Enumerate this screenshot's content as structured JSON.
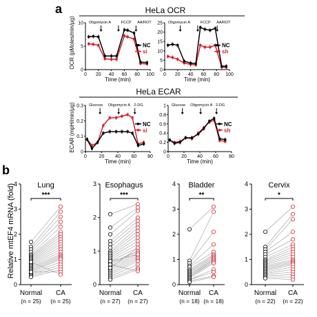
{
  "panel_a": {
    "label": "a",
    "ocr_title": "HeLa OCR",
    "ecar_title": "HeLa ECAR",
    "ocr_ylabel": "OCR (pMoles/min/μg)",
    "ecar_ylabel": "ECAR (mpH/min/μg)",
    "xlabel": "Time (min)"
  },
  "panel_b": {
    "label": "b",
    "ylabel": "Relative mtEF4 mRNA (fold)",
    "normal_label": "Normal",
    "ca_label": "CA"
  },
  "chart_data": [
    {
      "type": "line",
      "id": "ocr_si",
      "x": [
        5,
        12,
        20,
        30,
        40,
        48,
        60,
        65,
        75,
        85,
        95
      ],
      "series": [
        {
          "name": "NC",
          "color": "#000000",
          "values": [
            7.0,
            7.1,
            7.0,
            2.9,
            2.9,
            2.9,
            8.5,
            8.4,
            7.8,
            1.6,
            1.5
          ]
        },
        {
          "name": "si",
          "color": "#d4202c",
          "values": [
            5.5,
            5.4,
            5.2,
            2.3,
            2.2,
            2.2,
            7.2,
            7.0,
            6.5,
            1.3,
            1.2
          ]
        }
      ],
      "xlim": [
        0,
        100
      ],
      "ylim": [
        0,
        10
      ],
      "xticks": [
        0,
        20,
        40,
        60,
        80,
        100
      ],
      "yticks": [
        0,
        5,
        10
      ],
      "injections": [
        "Oligomycin A",
        "FCCP",
        "AA/ROT"
      ]
    },
    {
      "type": "line",
      "id": "ocr_sh",
      "x": [
        5,
        12,
        20,
        30,
        40,
        48,
        55,
        62,
        70,
        78,
        88,
        95
      ],
      "series": [
        {
          "name": "NC",
          "color": "#000000",
          "values": [
            13,
            13.5,
            13,
            4.5,
            3.5,
            3.2,
            22.5,
            21.5,
            21,
            22,
            1.8,
            1.8
          ]
        },
        {
          "name": "sh",
          "color": "#d4202c",
          "values": [
            7,
            6.5,
            5.5,
            3.5,
            2.8,
            2.5,
            13,
            12,
            12,
            13,
            1.3,
            1.2
          ]
        }
      ],
      "xlim": [
        0,
        100
      ],
      "ylim": [
        0,
        25
      ],
      "xticks": [
        0,
        20,
        40,
        60,
        80,
        100
      ],
      "yticks": [
        0,
        5,
        10,
        15,
        20,
        25
      ],
      "injections": [
        "Oligomycin A",
        "FCCP",
        "AA/ROT"
      ]
    },
    {
      "type": "line",
      "id": "ecar_si",
      "x": [
        2,
        8,
        15,
        22,
        30,
        38,
        45,
        52,
        58,
        65,
        72
      ],
      "series": [
        {
          "name": "NC",
          "color": "#000000",
          "values": [
            0.08,
            0.02,
            0.06,
            0.12,
            0.13,
            0.13,
            0.13,
            0.13,
            0.12,
            0.04,
            0.05
          ]
        },
        {
          "name": "si",
          "color": "#d4202c",
          "values": [
            0.08,
            0.04,
            0.06,
            0.17,
            0.22,
            0.22,
            0.23,
            0.24,
            0.22,
            0.05,
            0.06
          ]
        }
      ],
      "xlim": [
        0,
        80
      ],
      "ylim": [
        0,
        0.3
      ],
      "xticks": [
        0,
        20,
        40,
        60,
        80
      ],
      "yticks": [
        0.0,
        0.1,
        0.2,
        0.3
      ],
      "injections": [
        "Glucose",
        "Oligomycin A",
        "2-DG"
      ]
    },
    {
      "type": "line",
      "id": "ecar_sh",
      "x": [
        2,
        8,
        15,
        22,
        30,
        38,
        45,
        52,
        58,
        65,
        72
      ],
      "series": [
        {
          "name": "NC",
          "color": "#000000",
          "values": [
            0.25,
            0.18,
            0.2,
            0.3,
            0.3,
            0.38,
            0.5,
            0.66,
            0.72,
            0.28,
            0.26
          ]
        },
        {
          "name": "sh",
          "color": "#d4202c",
          "values": [
            0.25,
            0.2,
            0.22,
            0.3,
            0.28,
            0.4,
            0.52,
            0.64,
            0.68,
            0.24,
            0.22
          ]
        }
      ],
      "xlim": [
        0,
        80
      ],
      "ylim": [
        0,
        1
      ],
      "xticks": [
        0,
        20,
        40,
        60,
        80
      ],
      "yticks": [
        0.0,
        0.2,
        0.4,
        0.6,
        0.8,
        1.0
      ],
      "injections": [
        "Glucose",
        "Oligomycin A",
        "2-DG"
      ]
    },
    {
      "type": "scatter",
      "id": "lung",
      "title": "Lung",
      "sig": "***",
      "ylim": [
        0,
        4
      ],
      "yticks": [
        0,
        1,
        2,
        3,
        4
      ],
      "n_normal": "(n = 25)",
      "n_ca": "(n = 25)",
      "normal": [
        1.7,
        1.5,
        1.4,
        1.3,
        1.2,
        1.15,
        1.1,
        1.05,
        1.0,
        0.95,
        0.9,
        0.85,
        0.8,
        0.75,
        0.7,
        0.65,
        0.6,
        0.55,
        0.5,
        0.45,
        0.4,
        0.35,
        0.3,
        0.5,
        0.9
      ],
      "ca": [
        3.1,
        2.9,
        2.7,
        2.5,
        2.3,
        2.1,
        2.0,
        1.9,
        1.8,
        1.7,
        1.6,
        1.5,
        1.4,
        1.3,
        1.2,
        1.15,
        1.1,
        1.05,
        1.0,
        0.9,
        0.8,
        0.7,
        0.6,
        0.5,
        0.4
      ]
    },
    {
      "type": "scatter",
      "id": "esophagus",
      "title": "Esophagus",
      "sig": "***",
      "ylim": [
        0,
        3
      ],
      "yticks": [
        0,
        1,
        2,
        3
      ],
      "n_normal": "(n = 27)",
      "n_ca": "(n = 27)",
      "normal": [
        2.1,
        1.7,
        1.5,
        1.3,
        1.2,
        1.1,
        1.0,
        0.95,
        0.9,
        0.85,
        0.8,
        0.75,
        0.7,
        0.65,
        0.6,
        0.55,
        0.5,
        0.45,
        0.4,
        0.35,
        0.3,
        0.25,
        0.2,
        0.15,
        0.6,
        0.7,
        0.5
      ],
      "ca": [
        2.4,
        2.3,
        2.2,
        2.0,
        1.9,
        1.8,
        1.7,
        1.6,
        1.5,
        1.4,
        1.3,
        1.2,
        1.1,
        1.0,
        1.0,
        0.95,
        0.9,
        0.85,
        0.8,
        0.75,
        0.7,
        0.6,
        0.5,
        0.45,
        0.4,
        0.9,
        1.1
      ]
    },
    {
      "type": "scatter",
      "id": "bladder",
      "title": "Bladder",
      "sig": "**",
      "ylim": [
        0,
        4
      ],
      "yticks": [
        0,
        1,
        2,
        3,
        4
      ],
      "n_normal": "(n = 18)",
      "n_ca": "(n = 18)",
      "normal": [
        2.2,
        0.95,
        0.85,
        0.75,
        0.7,
        0.6,
        0.55,
        0.5,
        0.45,
        0.4,
        0.35,
        0.3,
        0.3,
        0.25,
        0.2,
        0.2,
        0.15,
        0.1
      ],
      "ca": [
        3.1,
        2.9,
        2.1,
        1.6,
        1.3,
        1.2,
        1.15,
        1.1,
        1.05,
        1.0,
        1.0,
        0.95,
        0.9,
        0.85,
        0.6,
        0.5,
        0.35,
        0.3
      ]
    },
    {
      "type": "scatter",
      "id": "cervix",
      "title": "Cervix",
      "sig": "*",
      "ylim": [
        0,
        4
      ],
      "yticks": [
        0,
        1,
        2,
        3,
        4
      ],
      "n_normal": "(n = 22)",
      "n_ca": "(n = 22)",
      "normal": [
        2.1,
        1.5,
        1.4,
        1.3,
        1.2,
        1.1,
        1.0,
        0.95,
        0.9,
        0.85,
        0.8,
        0.75,
        0.7,
        0.65,
        0.6,
        0.55,
        0.5,
        0.45,
        0.4,
        0.35,
        0.3,
        0.25
      ],
      "ca": [
        3.1,
        2.8,
        2.6,
        2.1,
        1.8,
        1.6,
        1.5,
        1.4,
        1.3,
        1.2,
        1.1,
        1.0,
        0.95,
        0.9,
        0.85,
        0.8,
        0.7,
        0.6,
        0.5,
        0.4,
        0.3,
        0.2
      ]
    }
  ]
}
